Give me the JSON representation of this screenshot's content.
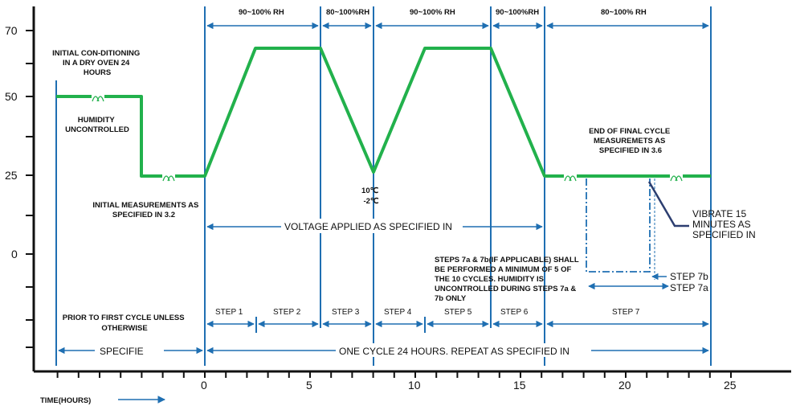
{
  "y_ticks": [
    "70",
    "50",
    "25",
    "0"
  ],
  "x_ticks": [
    "0",
    "5",
    "10",
    "15",
    "20",
    "25"
  ],
  "time_label": "TIME(HOURS)",
  "rh_labels": [
    "90~100% RH",
    "80~100%RH",
    "90~100% RH",
    "90~100%RH",
    "80~100% RH"
  ],
  "notes": {
    "initial_conditioning": [
      "INITIAL CON-DITIONING",
      "IN A DRY OVEN 24",
      "HOURS"
    ],
    "humidity_uncontrolled": [
      "HUMIDITY",
      "UNCONTROLLED"
    ],
    "initial_measurements": [
      "INITIAL MEASUREMENTS AS",
      "SPECIFIED IN 3.2"
    ],
    "low_temp": [
      "10℃",
      "-2℃"
    ],
    "voltage_applied": "VOLTAGE APPLIED AS SPECIFIED IN",
    "end_final_cycle": [
      "END OF FINAL CYCLE",
      "MEASUREMETS AS",
      "SPECIFIED IN 3.6"
    ],
    "vibrate": [
      "VIBRATE 15",
      "MINUTES AS",
      "SPECIFIED IN"
    ],
    "steps_7ab_note": [
      "STEPS 7a & 7b(IF APPLICABLE) SHALL",
      "BE PERFORMED A MINIMUM OF 5 OF",
      "THE 10 CYCLES. HUMIDITY IS",
      "UNCONTROLLED DURING STEPS 7a &",
      "7b ONLY"
    ],
    "step_7b": "STEP 7b",
    "step_7a": "STEP 7a",
    "prior_to_first": [
      "PRIOR TO FIRST CYCLE UNLESS",
      "OTHERWISE"
    ],
    "specifie": "SPECIFIE",
    "one_cycle": "ONE CYCLE 24 HOURS. REPEAT AS SPECIFIED IN"
  },
  "steps": [
    "STEP 1",
    "STEP 2",
    "STEP 3",
    "STEP 4",
    "STEP 5",
    "STEP 6",
    "STEP 7"
  ],
  "colors": {
    "profile": "#22b14c",
    "blue": "#1f6fb2",
    "axis": "#111111"
  }
}
